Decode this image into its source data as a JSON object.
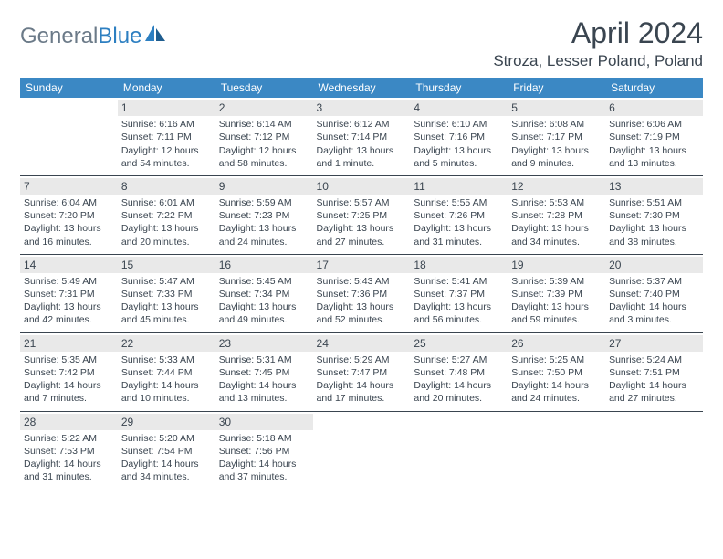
{
  "logo": {
    "text1": "General",
    "text2": "Blue"
  },
  "title": "April 2024",
  "location": "Stroza, Lesser Poland, Poland",
  "colors": {
    "header_bg": "#3b88c4",
    "header_text": "#ffffff",
    "text": "#3a4550",
    "daynum_bg": "#e9e9e9",
    "border": "#3a4550",
    "logo_gray": "#6b7a88",
    "logo_blue": "#2d7fc1"
  },
  "days_of_week": [
    "Sunday",
    "Monday",
    "Tuesday",
    "Wednesday",
    "Thursday",
    "Friday",
    "Saturday"
  ],
  "weeks": [
    [
      {
        "n": "",
        "sr": "",
        "ss": "",
        "dl": ""
      },
      {
        "n": "1",
        "sr": "Sunrise: 6:16 AM",
        "ss": "Sunset: 7:11 PM",
        "dl": "Daylight: 12 hours and 54 minutes."
      },
      {
        "n": "2",
        "sr": "Sunrise: 6:14 AM",
        "ss": "Sunset: 7:12 PM",
        "dl": "Daylight: 12 hours and 58 minutes."
      },
      {
        "n": "3",
        "sr": "Sunrise: 6:12 AM",
        "ss": "Sunset: 7:14 PM",
        "dl": "Daylight: 13 hours and 1 minute."
      },
      {
        "n": "4",
        "sr": "Sunrise: 6:10 AM",
        "ss": "Sunset: 7:16 PM",
        "dl": "Daylight: 13 hours and 5 minutes."
      },
      {
        "n": "5",
        "sr": "Sunrise: 6:08 AM",
        "ss": "Sunset: 7:17 PM",
        "dl": "Daylight: 13 hours and 9 minutes."
      },
      {
        "n": "6",
        "sr": "Sunrise: 6:06 AM",
        "ss": "Sunset: 7:19 PM",
        "dl": "Daylight: 13 hours and 13 minutes."
      }
    ],
    [
      {
        "n": "7",
        "sr": "Sunrise: 6:04 AM",
        "ss": "Sunset: 7:20 PM",
        "dl": "Daylight: 13 hours and 16 minutes."
      },
      {
        "n": "8",
        "sr": "Sunrise: 6:01 AM",
        "ss": "Sunset: 7:22 PM",
        "dl": "Daylight: 13 hours and 20 minutes."
      },
      {
        "n": "9",
        "sr": "Sunrise: 5:59 AM",
        "ss": "Sunset: 7:23 PM",
        "dl": "Daylight: 13 hours and 24 minutes."
      },
      {
        "n": "10",
        "sr": "Sunrise: 5:57 AM",
        "ss": "Sunset: 7:25 PM",
        "dl": "Daylight: 13 hours and 27 minutes."
      },
      {
        "n": "11",
        "sr": "Sunrise: 5:55 AM",
        "ss": "Sunset: 7:26 PM",
        "dl": "Daylight: 13 hours and 31 minutes."
      },
      {
        "n": "12",
        "sr": "Sunrise: 5:53 AM",
        "ss": "Sunset: 7:28 PM",
        "dl": "Daylight: 13 hours and 34 minutes."
      },
      {
        "n": "13",
        "sr": "Sunrise: 5:51 AM",
        "ss": "Sunset: 7:30 PM",
        "dl": "Daylight: 13 hours and 38 minutes."
      }
    ],
    [
      {
        "n": "14",
        "sr": "Sunrise: 5:49 AM",
        "ss": "Sunset: 7:31 PM",
        "dl": "Daylight: 13 hours and 42 minutes."
      },
      {
        "n": "15",
        "sr": "Sunrise: 5:47 AM",
        "ss": "Sunset: 7:33 PM",
        "dl": "Daylight: 13 hours and 45 minutes."
      },
      {
        "n": "16",
        "sr": "Sunrise: 5:45 AM",
        "ss": "Sunset: 7:34 PM",
        "dl": "Daylight: 13 hours and 49 minutes."
      },
      {
        "n": "17",
        "sr": "Sunrise: 5:43 AM",
        "ss": "Sunset: 7:36 PM",
        "dl": "Daylight: 13 hours and 52 minutes."
      },
      {
        "n": "18",
        "sr": "Sunrise: 5:41 AM",
        "ss": "Sunset: 7:37 PM",
        "dl": "Daylight: 13 hours and 56 minutes."
      },
      {
        "n": "19",
        "sr": "Sunrise: 5:39 AM",
        "ss": "Sunset: 7:39 PM",
        "dl": "Daylight: 13 hours and 59 minutes."
      },
      {
        "n": "20",
        "sr": "Sunrise: 5:37 AM",
        "ss": "Sunset: 7:40 PM",
        "dl": "Daylight: 14 hours and 3 minutes."
      }
    ],
    [
      {
        "n": "21",
        "sr": "Sunrise: 5:35 AM",
        "ss": "Sunset: 7:42 PM",
        "dl": "Daylight: 14 hours and 7 minutes."
      },
      {
        "n": "22",
        "sr": "Sunrise: 5:33 AM",
        "ss": "Sunset: 7:44 PM",
        "dl": "Daylight: 14 hours and 10 minutes."
      },
      {
        "n": "23",
        "sr": "Sunrise: 5:31 AM",
        "ss": "Sunset: 7:45 PM",
        "dl": "Daylight: 14 hours and 13 minutes."
      },
      {
        "n": "24",
        "sr": "Sunrise: 5:29 AM",
        "ss": "Sunset: 7:47 PM",
        "dl": "Daylight: 14 hours and 17 minutes."
      },
      {
        "n": "25",
        "sr": "Sunrise: 5:27 AM",
        "ss": "Sunset: 7:48 PM",
        "dl": "Daylight: 14 hours and 20 minutes."
      },
      {
        "n": "26",
        "sr": "Sunrise: 5:25 AM",
        "ss": "Sunset: 7:50 PM",
        "dl": "Daylight: 14 hours and 24 minutes."
      },
      {
        "n": "27",
        "sr": "Sunrise: 5:24 AM",
        "ss": "Sunset: 7:51 PM",
        "dl": "Daylight: 14 hours and 27 minutes."
      }
    ],
    [
      {
        "n": "28",
        "sr": "Sunrise: 5:22 AM",
        "ss": "Sunset: 7:53 PM",
        "dl": "Daylight: 14 hours and 31 minutes."
      },
      {
        "n": "29",
        "sr": "Sunrise: 5:20 AM",
        "ss": "Sunset: 7:54 PM",
        "dl": "Daylight: 14 hours and 34 minutes."
      },
      {
        "n": "30",
        "sr": "Sunrise: 5:18 AM",
        "ss": "Sunset: 7:56 PM",
        "dl": "Daylight: 14 hours and 37 minutes."
      },
      {
        "n": "",
        "sr": "",
        "ss": "",
        "dl": ""
      },
      {
        "n": "",
        "sr": "",
        "ss": "",
        "dl": ""
      },
      {
        "n": "",
        "sr": "",
        "ss": "",
        "dl": ""
      },
      {
        "n": "",
        "sr": "",
        "ss": "",
        "dl": ""
      }
    ]
  ]
}
